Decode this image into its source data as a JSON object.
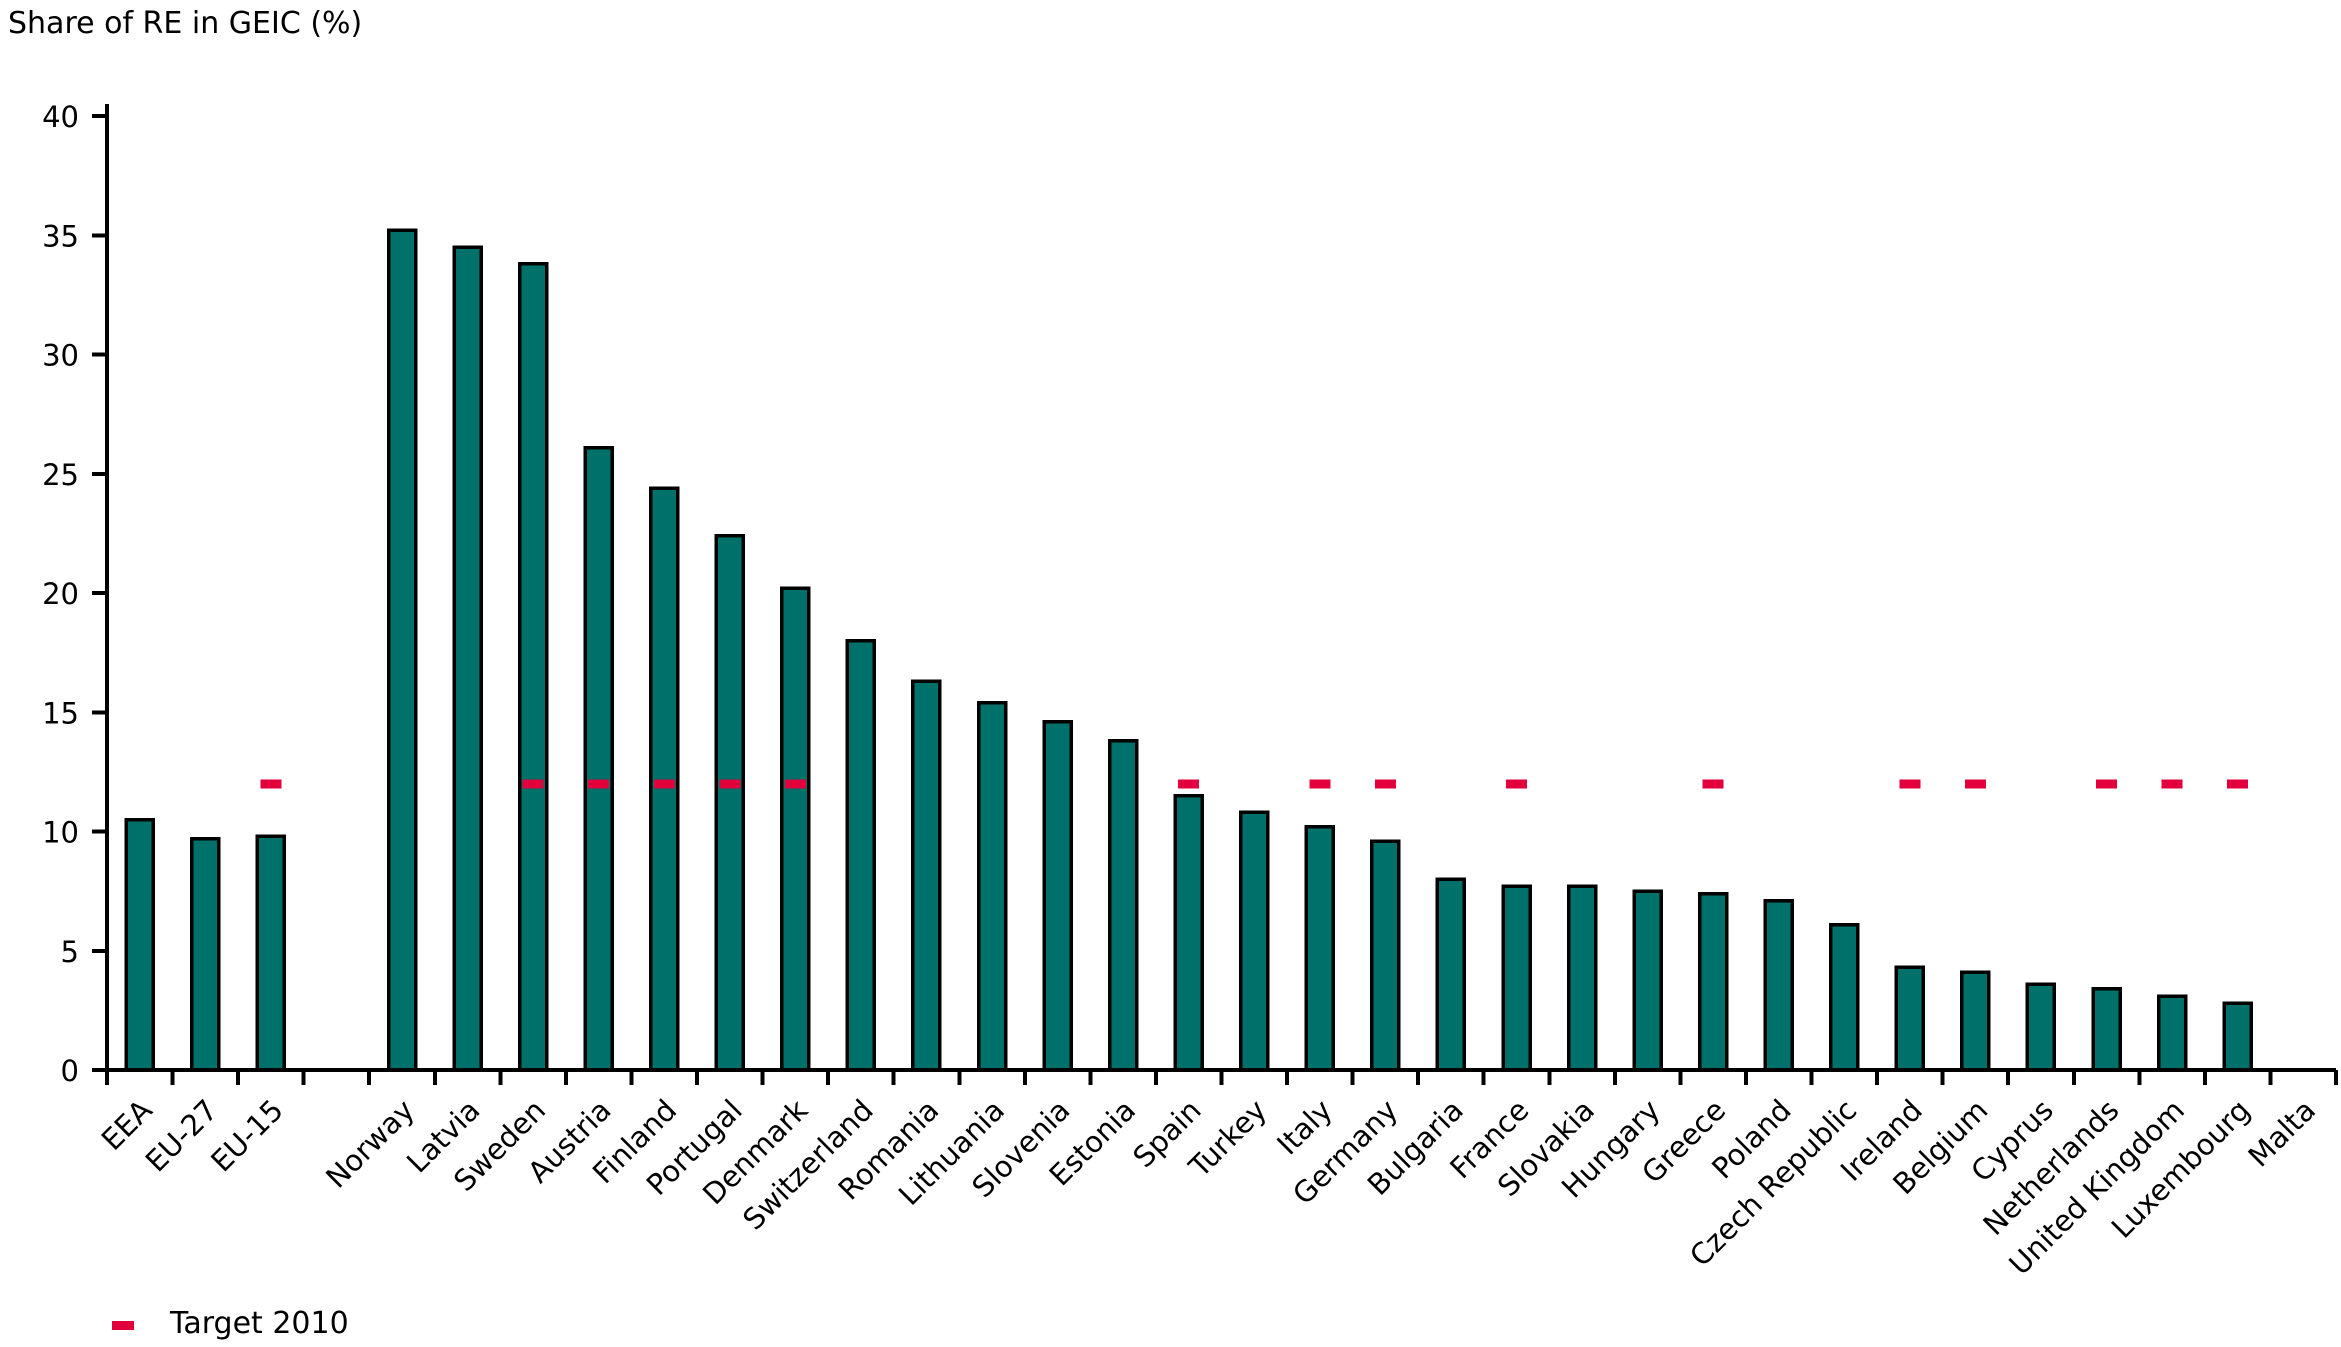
{
  "title": "Share of RE in GEIC (%)",
  "legend": {
    "label": "Target 2010",
    "marker_color": "#e1003c"
  },
  "colors": {
    "bar_fill": "#00706a",
    "bar_border": "#000000",
    "target_dash": "#e1003c",
    "axis": "#000000",
    "background": "#ffffff"
  },
  "chart_data": {
    "type": "bar",
    "title": "Share of RE in GEIC (%)",
    "ylabel": "Share of RE in GEIC (%)",
    "xlabel": "",
    "ylim": [
      0,
      40
    ],
    "yticks": [
      0,
      5,
      10,
      15,
      20,
      25,
      30,
      35,
      40
    ],
    "grid": false,
    "legend_position": "bottom-left",
    "legend_entries": [
      {
        "label": "Target 2010",
        "marker": "dash",
        "color": "#e1003c"
      }
    ],
    "target_2010_value": 12,
    "categories": [
      "EEA",
      "EU-27",
      "EU-15",
      "",
      "Norway",
      "Latvia",
      "Sweden",
      "Austria",
      "Finland",
      "Portugal",
      "Denmark",
      "Switzerland",
      "Romania",
      "Lithuania",
      "Slovenia",
      "Estonia",
      "Spain",
      "Turkey",
      "Italy",
      "Germany",
      "Bulgaria",
      "France",
      "Slovakia",
      "Hungary",
      "Greece",
      "Poland",
      "Czech Republic",
      "Ireland",
      "Belgium",
      "Cyprus",
      "Netherlands",
      "United Kingdom",
      "Luxembourg",
      "Malta"
    ],
    "values": [
      10.5,
      9.7,
      9.8,
      null,
      35.2,
      34.5,
      33.8,
      26.1,
      24.4,
      22.4,
      20.2,
      18.0,
      16.3,
      15.4,
      14.6,
      13.8,
      11.5,
      10.8,
      10.2,
      9.6,
      8.0,
      7.7,
      7.7,
      7.5,
      7.4,
      7.1,
      6.1,
      4.3,
      4.1,
      3.6,
      3.4,
      3.1,
      2.8,
      0
    ],
    "targets": [
      null,
      null,
      12,
      null,
      null,
      null,
      12,
      12,
      12,
      12,
      12,
      null,
      null,
      null,
      null,
      null,
      12,
      null,
      12,
      12,
      null,
      12,
      null,
      null,
      12,
      null,
      null,
      12,
      12,
      null,
      12,
      12,
      12,
      null
    ]
  }
}
